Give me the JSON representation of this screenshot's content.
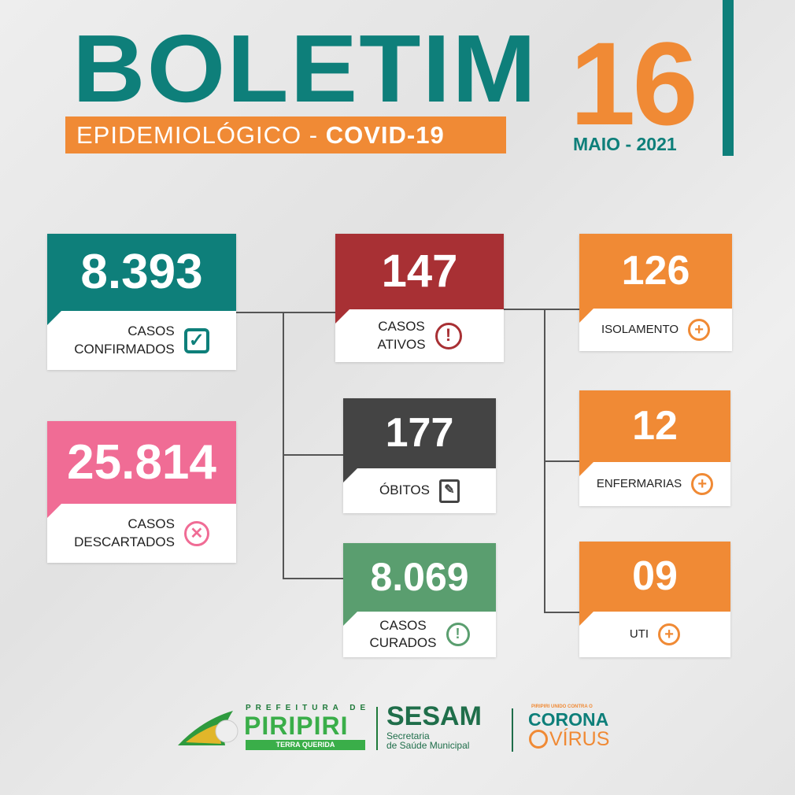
{
  "header": {
    "title": "BOLETIM",
    "subtitle_light": "EPIDEMIOLÓGICO - ",
    "subtitle_bold": "COVID-19",
    "day": "16",
    "month_year": "MAIO - 2021"
  },
  "colors": {
    "teal": "#0e7f7a",
    "orange": "#f08a35",
    "red": "#a83034",
    "dark": "#444444",
    "green": "#5a9e6f",
    "pink": "#f06c95"
  },
  "cards": {
    "confirmados": {
      "value": "8.393",
      "label1": "CASOS",
      "label2": "CONFIRMADOS",
      "icon": "check-box-icon"
    },
    "descartados": {
      "value": "25.814",
      "label1": "CASOS",
      "label2": "DESCARTADOS",
      "icon": "x-circle-icon"
    },
    "ativos": {
      "value": "147",
      "label1": "CASOS",
      "label2": "ATIVOS",
      "icon": "exclamation-circle-icon"
    },
    "obitos": {
      "value": "177",
      "label1": "ÓBITOS",
      "icon": "document-pen-icon"
    },
    "curados": {
      "value": "8.069",
      "label1": "CASOS",
      "label2": "CURADOS",
      "icon": "exclamation-circle-icon"
    },
    "isolamento": {
      "value": "126",
      "label1": "ISOLAMENTO",
      "icon": "plus-circle-icon"
    },
    "enfermarias": {
      "value": "12",
      "label1": "ENFERMARIAS",
      "icon": "plus-circle-icon"
    },
    "uti": {
      "value": "09",
      "label1": "UTI",
      "icon": "plus-circle-icon"
    }
  },
  "footer": {
    "pref": "PREFEITURA DE",
    "city": "PIRIPIRI",
    "motto": "TERRA QUERIDA",
    "sesam": "SESAM",
    "sesam_sub1": "Secretaria",
    "sesam_sub2": "de Saúde Municipal",
    "corona_top": "PIRIPIRI UNIDO CONTRA O",
    "corona": "CORONA",
    "virus": "VÍRUS"
  }
}
